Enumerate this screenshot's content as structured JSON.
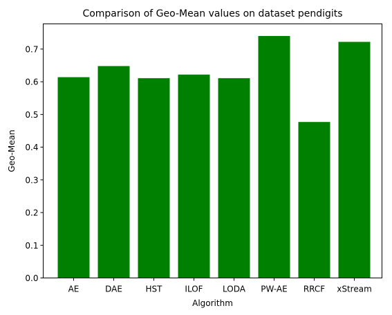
{
  "chart_data": {
    "type": "bar",
    "title": "Comparison of Geo-Mean values on dataset pendigits",
    "xlabel": "Algorithm",
    "ylabel": "Geo-Mean",
    "categories": [
      "AE",
      "DAE",
      "HST",
      "ILOF",
      "LODA",
      "PW-AE",
      "RRCF",
      "xStream"
    ],
    "values": [
      0.614,
      0.648,
      0.611,
      0.622,
      0.611,
      0.74,
      0.477,
      0.722
    ],
    "ylim": [
      0,
      0.777
    ],
    "yticks": [
      0.0,
      0.1,
      0.2,
      0.3,
      0.4,
      0.5,
      0.6,
      0.7
    ],
    "ytick_labels": [
      "0.0",
      "0.1",
      "0.2",
      "0.3",
      "0.4",
      "0.5",
      "0.6",
      "0.7"
    ],
    "bar_color": "#008000",
    "grid": false,
    "legend": false
  }
}
